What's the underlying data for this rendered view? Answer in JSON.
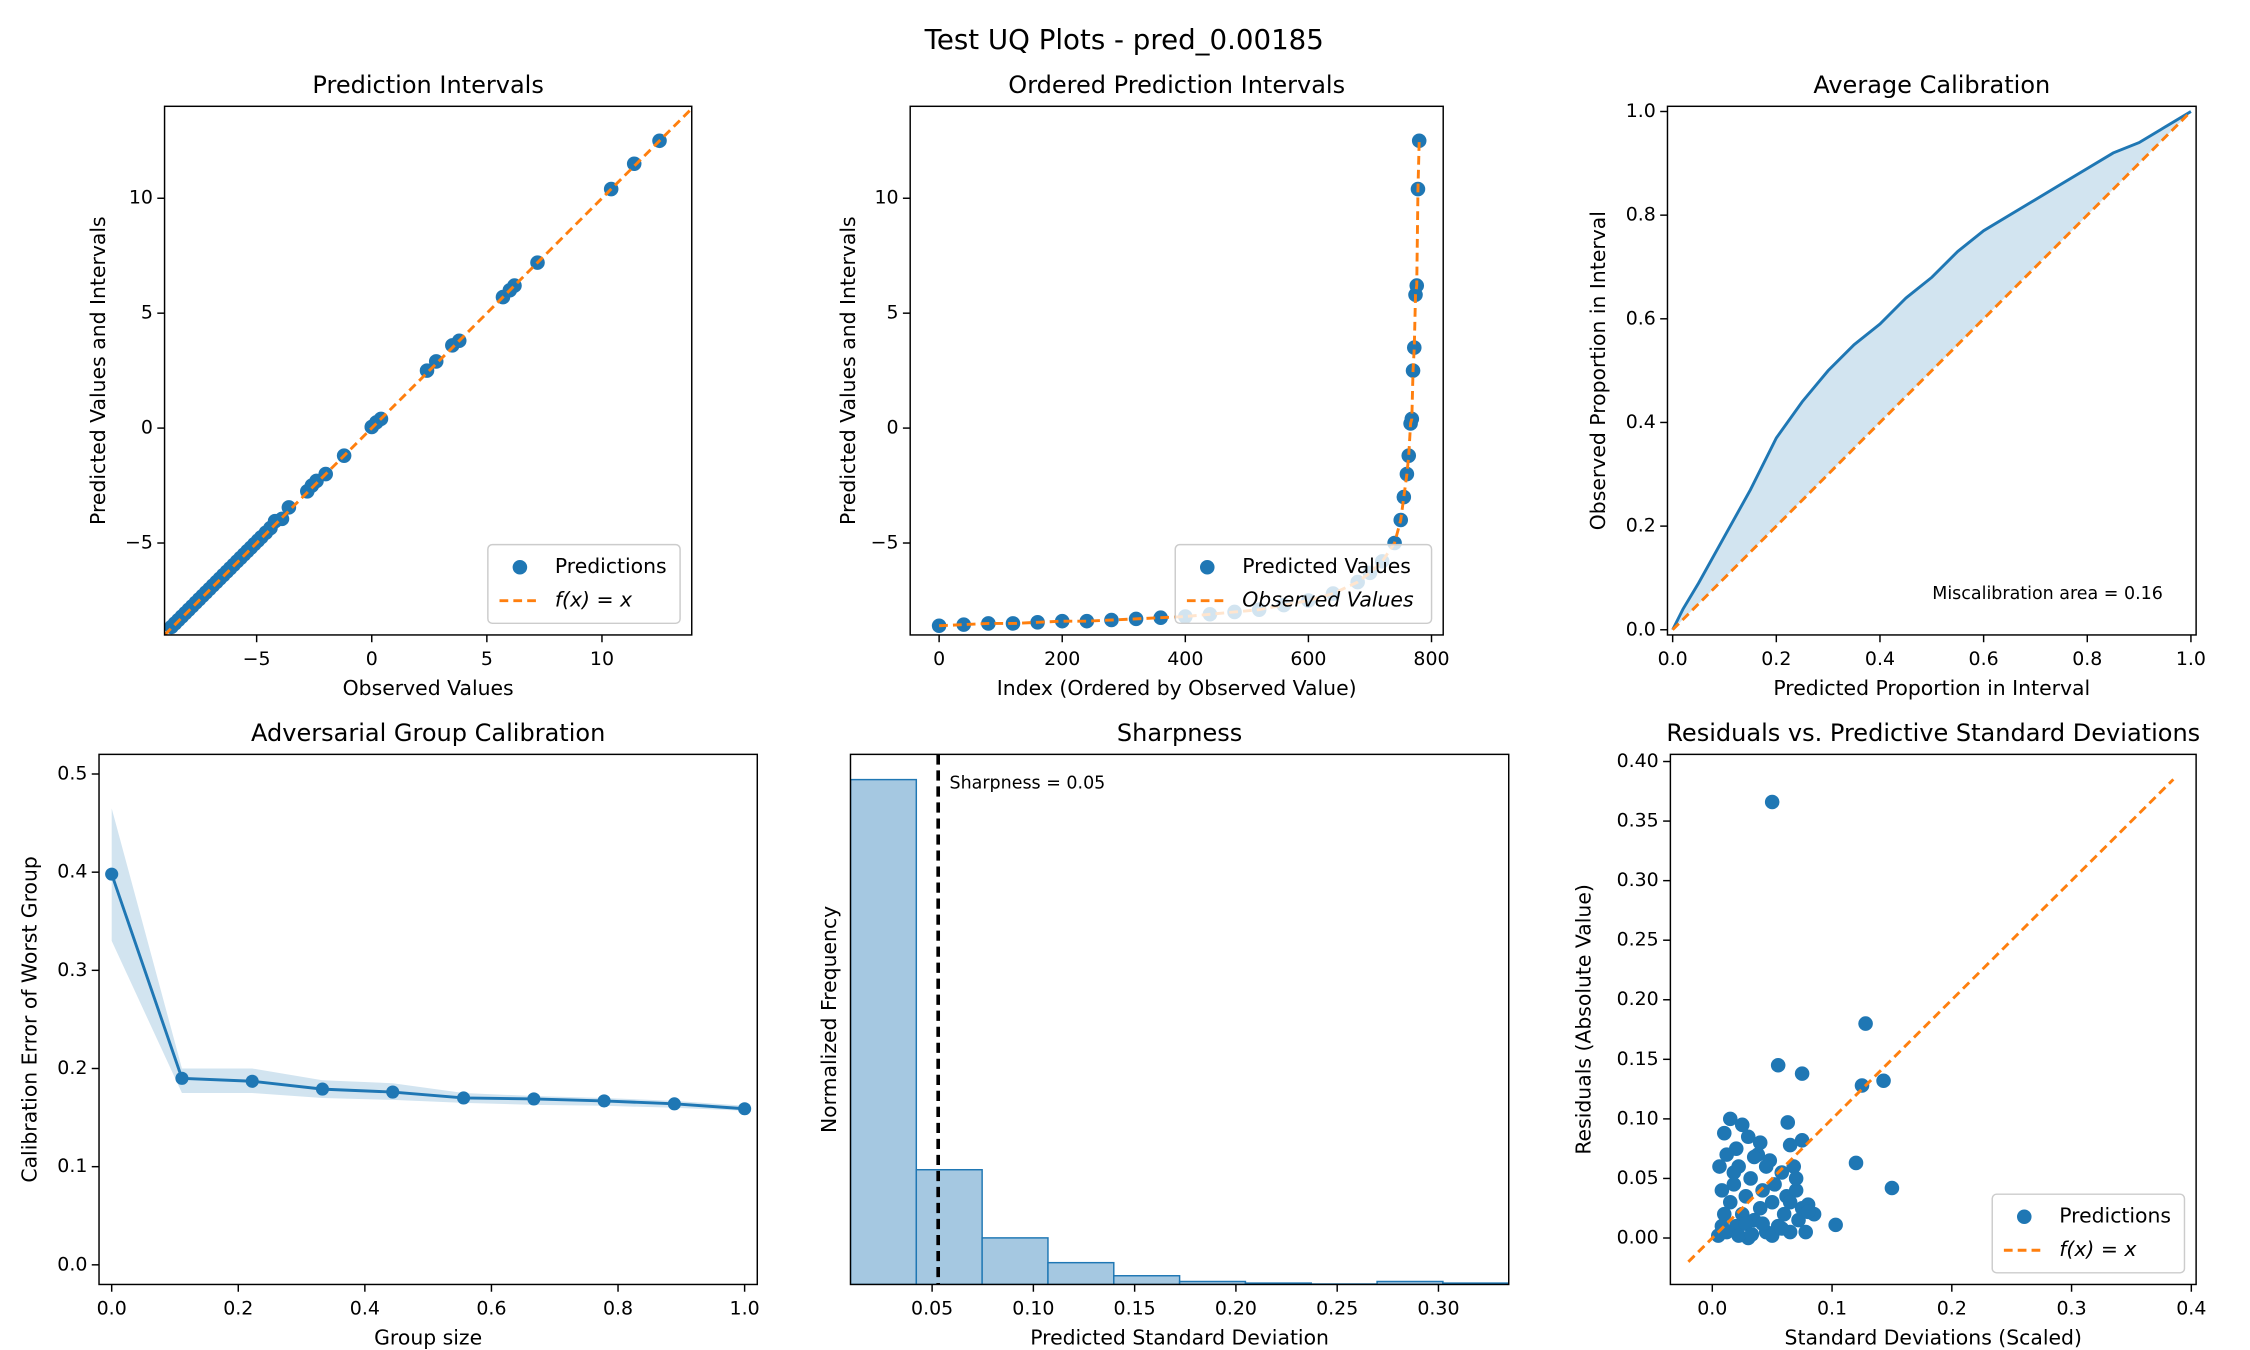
{
  "title": "Test UQ Plots - pred_0.00185",
  "chart_data": [
    {
      "type": "scatter",
      "title": "Prediction Intervals",
      "xlabel": "Observed Values",
      "ylabel": "Predicted Values and Intervals",
      "xlim": [
        -9,
        13.9
      ],
      "ylim": [
        -9,
        14
      ],
      "xticks": [
        {
          "value": -5,
          "label": "−5"
        },
        0,
        5,
        10
      ],
      "yticks": [
        {
          "value": -5,
          "label": "−5"
        },
        0,
        5,
        10
      ],
      "legend": "lower right",
      "series": [
        {
          "name": "Predictions",
          "kind": "scatter",
          "color": "#1f77b4",
          "x": [
            -8.7,
            -8.55,
            -8.4,
            -8.25,
            -8.1,
            -7.95,
            -7.8,
            -7.65,
            -7.5,
            -7.35,
            -7.2,
            -7.05,
            -6.9,
            -6.75,
            -6.6,
            -6.45,
            -6.3,
            -6.15,
            -6.0,
            -5.85,
            -5.7,
            -5.55,
            -5.4,
            -5.25,
            -5.1,
            -4.95,
            -4.8,
            -4.6,
            -4.4,
            -4.2,
            -3.9,
            -3.6,
            -2.8,
            -2.6,
            -2.4,
            -2.0,
            -1.2,
            0.0,
            0.2,
            0.4,
            2.4,
            2.8,
            3.5,
            3.8,
            5.7,
            6.0,
            6.2,
            7.2,
            10.4,
            11.4,
            12.5
          ],
          "values": [
            -8.65,
            -8.5,
            -8.35,
            -8.2,
            -8.05,
            -7.9,
            -7.75,
            -7.6,
            -7.45,
            -7.3,
            -7.15,
            -7.0,
            -6.85,
            -6.7,
            -6.55,
            -6.4,
            -6.25,
            -6.1,
            -5.95,
            -5.8,
            -5.65,
            -5.5,
            -5.35,
            -5.2,
            -5.05,
            -4.9,
            -4.75,
            -4.55,
            -4.35,
            -4.05,
            -3.95,
            -3.45,
            -2.75,
            -2.5,
            -2.3,
            -2.0,
            -1.2,
            0.05,
            0.25,
            0.4,
            2.5,
            2.9,
            3.6,
            3.8,
            5.7,
            6.0,
            6.2,
            7.2,
            10.4,
            11.5,
            12.5
          ]
        },
        {
          "name": "f(x) = x",
          "kind": "line",
          "linestyle": "dashed",
          "color": "#ff7f0e",
          "x": [
            -9,
            13.9
          ],
          "values": [
            -9,
            13.9
          ]
        }
      ]
    },
    {
      "type": "scatter",
      "title": "Ordered Prediction Intervals",
      "xlabel": "Index (Ordered by Observed Value)",
      "ylabel": "Predicted Values and Intervals",
      "xlim": [
        -47,
        819
      ],
      "ylim": [
        -9,
        14
      ],
      "xticks": [
        0,
        200,
        400,
        600,
        800
      ],
      "yticks": [
        {
          "value": -5,
          "label": "−5"
        },
        0,
        5,
        10
      ],
      "legend": "lower right",
      "series": [
        {
          "name": "Predicted Values",
          "kind": "scatter",
          "color": "#1f77b4",
          "x": [
            0,
            40,
            80,
            120,
            160,
            200,
            240,
            280,
            320,
            360,
            400,
            440,
            480,
            520,
            560,
            600,
            640,
            680,
            700,
            720,
            740,
            750,
            755,
            760,
            763,
            766,
            768,
            770,
            772,
            774,
            776,
            778,
            780
          ],
          "values": [
            -8.6,
            -8.55,
            -8.5,
            -8.5,
            -8.45,
            -8.4,
            -8.4,
            -8.35,
            -8.3,
            -8.25,
            -8.2,
            -8.1,
            -8.0,
            -7.9,
            -7.7,
            -7.5,
            -7.2,
            -6.7,
            -6.3,
            -5.8,
            -5.0,
            -4.0,
            -3.0,
            -2.0,
            -1.2,
            0.2,
            0.4,
            2.5,
            3.5,
            5.8,
            6.2,
            10.4,
            12.5
          ]
        },
        {
          "name": "Observed Values",
          "kind": "line",
          "linestyle": "dashed",
          "color": "#ff7f0e",
          "x": [
            0,
            40,
            80,
            120,
            160,
            200,
            240,
            280,
            320,
            360,
            400,
            440,
            480,
            520,
            560,
            600,
            640,
            680,
            700,
            720,
            740,
            750,
            755,
            760,
            763,
            766,
            768,
            770,
            772,
            774,
            776,
            778,
            780
          ],
          "values": [
            -8.6,
            -8.55,
            -8.5,
            -8.5,
            -8.45,
            -8.4,
            -8.4,
            -8.35,
            -8.3,
            -8.25,
            -8.2,
            -8.1,
            -8.0,
            -7.9,
            -7.7,
            -7.5,
            -7.2,
            -6.7,
            -6.3,
            -5.8,
            -5.0,
            -4.0,
            -3.0,
            -2.0,
            -1.2,
            0.2,
            0.4,
            2.5,
            3.5,
            5.8,
            6.2,
            10.4,
            12.5
          ]
        }
      ]
    },
    {
      "type": "line",
      "title": "Average Calibration",
      "xlabel": "Predicted Proportion in Interval",
      "ylabel": "Observed Proportion in Interval",
      "xlim": [
        -0.01,
        1.01
      ],
      "ylim": [
        -0.01,
        1.01
      ],
      "xticks": [
        {
          "value": 0,
          "label": "0.0"
        },
        0.2,
        0.4,
        0.6,
        0.8,
        {
          "value": 1,
          "label": "1.0"
        }
      ],
      "yticks": [
        {
          "value": 0,
          "label": "0.0"
        },
        0.2,
        0.4,
        0.6,
        0.8,
        {
          "value": 1,
          "label": "1.0"
        }
      ],
      "fill_between": true,
      "annotation": "Miscalibration area = 0.16",
      "series": [
        {
          "kind": "line",
          "color": "#1f77b4",
          "x": [
            0,
            0.02,
            0.05,
            0.1,
            0.15,
            0.2,
            0.25,
            0.3,
            0.35,
            0.4,
            0.45,
            0.5,
            0.55,
            0.6,
            0.65,
            0.7,
            0.75,
            0.8,
            0.85,
            0.9,
            0.95,
            1
          ],
          "values": [
            0,
            0.04,
            0.09,
            0.18,
            0.27,
            0.37,
            0.44,
            0.5,
            0.55,
            0.59,
            0.64,
            0.68,
            0.73,
            0.77,
            0.8,
            0.83,
            0.86,
            0.89,
            0.92,
            0.94,
            0.97,
            1
          ]
        },
        {
          "kind": "line",
          "linestyle": "dashed",
          "color": "#ff7f0e",
          "x": [
            0,
            1
          ],
          "values": [
            0,
            1
          ]
        }
      ]
    },
    {
      "type": "line",
      "title": "Adversarial Group Calibration",
      "xlabel": "Group size",
      "ylabel": "Calibration Error of Worst Group",
      "xlim": [
        -0.02,
        1.02
      ],
      "ylim": [
        -0.02,
        0.52
      ],
      "xticks": [
        {
          "value": 0,
          "label": "0.0"
        },
        0.2,
        0.4,
        0.6,
        0.8,
        {
          "value": 1,
          "label": "1.0"
        }
      ],
      "yticks": [
        {
          "value": 0,
          "label": "0.0"
        },
        0.1,
        0.2,
        0.3,
        0.4,
        0.5
      ],
      "series": [
        {
          "kind": "line",
          "marker": true,
          "color": "#1f77b4",
          "x": [
            0,
            0.111,
            0.222,
            0.333,
            0.444,
            0.556,
            0.667,
            0.778,
            0.889,
            1
          ],
          "values": [
            0.398,
            0.19,
            0.187,
            0.179,
            0.176,
            0.17,
            0.169,
            0.167,
            0.164,
            0.159
          ],
          "lower": [
            0.33,
            0.175,
            0.175,
            0.17,
            0.168,
            0.165,
            0.163,
            0.162,
            0.16,
            0.157
          ],
          "upper": [
            0.465,
            0.2,
            0.2,
            0.188,
            0.185,
            0.175,
            0.172,
            0.17,
            0.167,
            0.162
          ]
        }
      ]
    },
    {
      "type": "histogram",
      "title": "Sharpness",
      "xlabel": "Predicted Standard Deviation",
      "ylabel": "Normalized Frequency",
      "xlim": [
        0.0097,
        0.3347
      ],
      "ylim": [
        0,
        23.1
      ],
      "xticks": [
        0.05,
        {
          "value": 0.1,
          "label": "0.10"
        },
        0.15,
        {
          "value": 0.2,
          "label": "0.20"
        },
        0.25,
        {
          "value": 0.3,
          "label": "0.30"
        }
      ],
      "color": "#a5c8e1",
      "edgecolor": "#1f77b4",
      "bins": [
        0.0097,
        0.0422,
        0.0747,
        0.1072,
        0.1397,
        0.1722,
        0.2047,
        0.2372,
        0.2697,
        0.3022,
        0.3347
      ],
      "values": [
        22.0,
        5.0,
        2.03,
        0.95,
        0.38,
        0.13,
        0.06,
        0.02,
        0.13,
        0.06
      ],
      "sharpness": 0.053,
      "annotation": "Sharpness = 0.05"
    },
    {
      "type": "scatter",
      "title": "Residuals vs. Predictive Standard Deviations",
      "xlabel": "Standard Deviations (Scaled)",
      "ylabel": "Residuals (Absolute Value)",
      "xlim": [
        -0.035,
        0.404
      ],
      "ylim": [
        -0.039,
        0.406
      ],
      "xticks": [
        {
          "value": 0,
          "label": "0.0"
        },
        0.1,
        0.2,
        0.3,
        0.4
      ],
      "yticks": [
        {
          "value": 0,
          "label": "0.00"
        },
        0.05,
        {
          "value": 0.1,
          "label": "0.10"
        },
        0.15,
        {
          "value": 0.2,
          "label": "0.20"
        },
        0.25,
        {
          "value": 0.3,
          "label": "0.30"
        },
        0.35,
        {
          "value": 0.4,
          "label": "0.40"
        }
      ],
      "legend": "lower right",
      "series": [
        {
          "name": "Predictions",
          "kind": "scatter",
          "color": "#1f77b4",
          "x": [
            0.005,
            0.008,
            0.01,
            0.012,
            0.015,
            0.018,
            0.02,
            0.022,
            0.025,
            0.028,
            0.03,
            0.032,
            0.035,
            0.038,
            0.04,
            0.042,
            0.045,
            0.048,
            0.05,
            0.052,
            0.055,
            0.058,
            0.06,
            0.062,
            0.065,
            0.068,
            0.07,
            0.072,
            0.075,
            0.078,
            0.01,
            0.015,
            0.02,
            0.025,
            0.03,
            0.035,
            0.04,
            0.045,
            0.012,
            0.018,
            0.008,
            0.006,
            0.022,
            0.028,
            0.033,
            0.042,
            0.05,
            0.058,
            0.065,
            0.07,
            0.08,
            0.085,
            0.05,
            0.128,
            0.125,
            0.143,
            0.15,
            0.12,
            0.103,
            0.075,
            0.055,
            0.063,
            0.08,
            0.075,
            0.065
          ],
          "values": [
            0.002,
            0.01,
            0.02,
            0.005,
            0.03,
            0.045,
            0.01,
            0.06,
            0.02,
            0.035,
            0.0,
            0.05,
            0.015,
            0.07,
            0.025,
            0.04,
            0.005,
            0.065,
            0.03,
            0.045,
            0.01,
            0.055,
            0.02,
            0.035,
            0.005,
            0.06,
            0.04,
            0.015,
            0.025,
            0.005,
            0.088,
            0.1,
            0.075,
            0.095,
            0.085,
            0.068,
            0.08,
            0.06,
            0.07,
            0.055,
            0.04,
            0.06,
            0.002,
            0.012,
            0.003,
            0.012,
            0.002,
            0.008,
            0.03,
            0.05,
            0.028,
            0.02,
            0.366,
            0.18,
            0.128,
            0.132,
            0.042,
            0.063,
            0.011,
            0.138,
            0.145,
            0.097,
            0.022,
            0.082,
            0.078
          ]
        },
        {
          "name": "f(x) = x",
          "kind": "line",
          "linestyle": "dashed",
          "color": "#ff7f0e",
          "x": [
            -0.02,
            0.385
          ],
          "values": [
            -0.02,
            0.385
          ]
        }
      ]
    }
  ]
}
